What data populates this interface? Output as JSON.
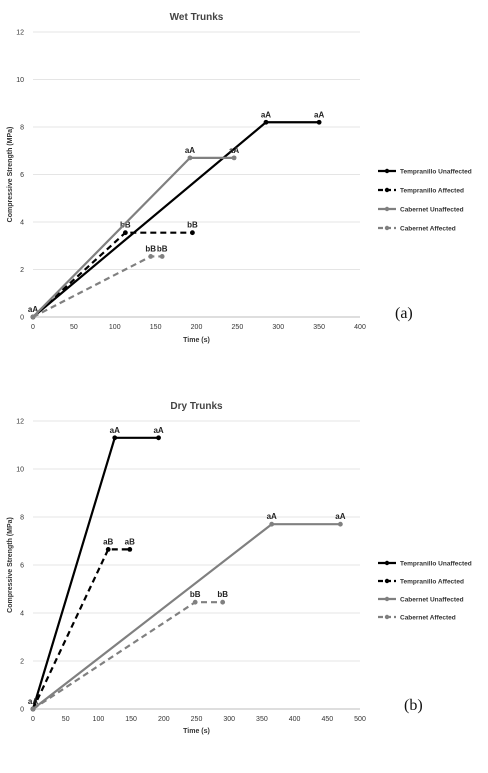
{
  "chart_data": [
    {
      "type": "line",
      "title": "Wet Trunks",
      "xlabel": "Time (s)",
      "ylabel": "Compressive Strength (MPa)",
      "xlim": [
        0,
        400
      ],
      "ylim": [
        0,
        12
      ],
      "xticks": [
        "0",
        "50",
        "100",
        "150",
        "200",
        "250",
        "300",
        "350",
        "400"
      ],
      "yticks": [
        "0",
        "2",
        "4",
        "6",
        "8",
        "10",
        "12"
      ],
      "grid": true,
      "legend_position": "right",
      "panel_label": "(a)",
      "series": [
        {
          "name": "Tempranillo Unaffected",
          "color": "#000000",
          "dash": "solid",
          "points": [
            [
              0,
              0
            ],
            [
              285,
              8.2
            ],
            [
              350,
              8.2
            ]
          ],
          "labels": [
            "aA",
            "aA",
            "aA"
          ]
        },
        {
          "name": "Tempranillo Affected",
          "color": "#000000",
          "dash": "dashed",
          "points": [
            [
              0,
              0
            ],
            [
              113,
              3.55
            ],
            [
              195,
              3.55
            ]
          ],
          "labels": [
            "",
            "bB",
            "bB"
          ]
        },
        {
          "name": "Cabernet Unaffected",
          "color": "#808080",
          "dash": "solid",
          "points": [
            [
              0,
              0
            ],
            [
              192,
              6.7
            ],
            [
              246,
              6.7
            ]
          ],
          "labels": [
            "",
            "aA",
            "aA"
          ]
        },
        {
          "name": "Cabernet Affected",
          "color": "#808080",
          "dash": "dashed",
          "points": [
            [
              0,
              0
            ],
            [
              144,
              2.55
            ],
            [
              158,
              2.55
            ]
          ],
          "labels": [
            "",
            "bB",
            "bB"
          ]
        }
      ]
    },
    {
      "type": "line",
      "title": "Dry Trunks",
      "xlabel": "Time (s)",
      "ylabel": "Compressive Strength (MPa)",
      "xlim": [
        0,
        500
      ],
      "ylim": [
        0,
        12
      ],
      "xticks": [
        "0",
        "50",
        "100",
        "150",
        "200",
        "250",
        "300",
        "350",
        "400",
        "450",
        "500"
      ],
      "yticks": [
        "0",
        "2",
        "4",
        "6",
        "8",
        "10",
        "12"
      ],
      "grid": true,
      "legend_position": "right",
      "panel_label": "(b)",
      "series": [
        {
          "name": "Tempranillo Unaffected",
          "color": "#000000",
          "dash": "solid",
          "points": [
            [
              0,
              0
            ],
            [
              125,
              11.3
            ],
            [
              192,
              11.3
            ]
          ],
          "labels": [
            "aA",
            "aA",
            "aA"
          ]
        },
        {
          "name": "Tempranillo Affected",
          "color": "#000000",
          "dash": "dashed",
          "points": [
            [
              0,
              0
            ],
            [
              115,
              6.65
            ],
            [
              148,
              6.65
            ]
          ],
          "labels": [
            "",
            "aB",
            "aB"
          ]
        },
        {
          "name": "Cabernet Unaffected",
          "color": "#808080",
          "dash": "solid",
          "points": [
            [
              0,
              0
            ],
            [
              365,
              7.7
            ],
            [
              470,
              7.7
            ]
          ],
          "labels": [
            "",
            "aA",
            "aA"
          ]
        },
        {
          "name": "Cabernet Affected",
          "color": "#808080",
          "dash": "dashed",
          "points": [
            [
              0,
              0
            ],
            [
              248,
              4.45
            ],
            [
              290,
              4.45
            ]
          ],
          "labels": [
            "",
            "bB",
            "bB"
          ]
        }
      ]
    }
  ]
}
